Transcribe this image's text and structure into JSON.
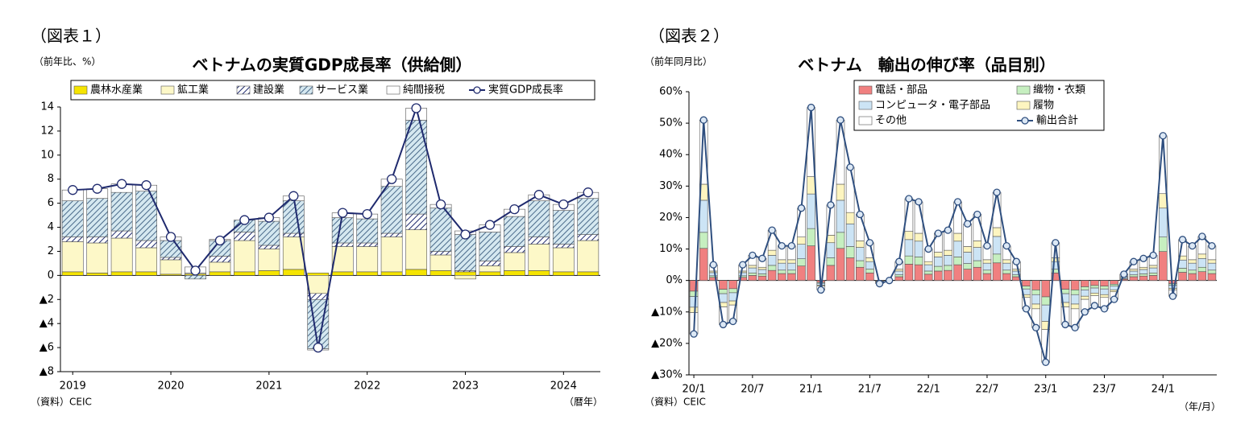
{
  "chart_data": [
    {
      "type": "stacked_bar_line",
      "figure_label": "（図表１）",
      "unit_label": "（前年比、%）",
      "title": "ベトナムの実質GDP成長率（供給側）",
      "source": "（資料）CEIC",
      "x_unit": "（暦年）",
      "categories": [
        "2019",
        null,
        null,
        null,
        "2020",
        null,
        null,
        null,
        "2021",
        null,
        null,
        null,
        "2022",
        null,
        null,
        null,
        "2023",
        null,
        null,
        null,
        "2024",
        null
      ],
      "ylim": [
        -8,
        14
      ],
      "yticks": [
        14,
        12,
        10,
        8,
        6,
        4,
        2,
        0,
        {
          "value": -2,
          "label": "▲2"
        },
        {
          "value": -4,
          "label": "▲4"
        },
        {
          "value": -6,
          "label": "▲6"
        },
        {
          "value": -8,
          "label": "▲8"
        }
      ],
      "series": [
        {
          "name": "農林水産業",
          "color": "#f5e400",
          "values": [
            0.3,
            0.2,
            0.3,
            0.3,
            0.1,
            0.1,
            0.3,
            0.3,
            0.4,
            0.5,
            0.2,
            0.3,
            0.3,
            0.3,
            0.5,
            0.4,
            0.3,
            0.3,
            0.4,
            0.4,
            0.3,
            0.3
          ]
        },
        {
          "name": "鉱工業",
          "color": "#fdf8c8",
          "values": [
            2.5,
            2.5,
            2.8,
            2.0,
            1.2,
            0.1,
            0.8,
            2.6,
            1.8,
            2.7,
            -1.5,
            2.1,
            2.1,
            2.9,
            3.3,
            1.3,
            -0.3,
            0.5,
            1.5,
            2.2,
            2.0,
            2.6
          ]
        },
        {
          "name": "建設業",
          "color": "#ffffff",
          "hatch": "#1f2a6e",
          "values": [
            0.4,
            0.5,
            0.6,
            0.6,
            0.2,
            0.0,
            0.5,
            0.7,
            0.3,
            0.3,
            -0.5,
            0.3,
            0.3,
            0.3,
            1.3,
            0.3,
            0.1,
            0.4,
            0.5,
            0.6,
            0.3,
            0.5
          ]
        },
        {
          "name": "サービス業",
          "color": "#d5e8f0",
          "hatch": "#4a6a8a",
          "values": [
            3.0,
            3.2,
            3.2,
            4.1,
            1.4,
            -0.3,
            1.3,
            1.0,
            2.0,
            2.7,
            -4.1,
            2.1,
            2.0,
            3.9,
            7.8,
            3.6,
            3.0,
            2.4,
            2.5,
            3.0,
            2.8,
            3.0
          ]
        },
        {
          "name": "純間接税",
          "color": "#ffffff",
          "values": [
            0.9,
            0.8,
            0.7,
            0.5,
            0.3,
            0.5,
            0.1,
            0.0,
            0.3,
            0.4,
            -0.1,
            0.4,
            0.4,
            0.6,
            1.0,
            0.3,
            0.3,
            0.6,
            0.6,
            0.5,
            0.5,
            0.5
          ]
        }
      ],
      "line": {
        "name": "実質GDP成長率",
        "color": "#1f2a6e",
        "marker": "#ffffff",
        "values": [
          7.1,
          7.2,
          7.6,
          7.5,
          3.2,
          0.4,
          2.9,
          4.6,
          4.8,
          6.6,
          -6.0,
          5.2,
          5.1,
          8.0,
          13.9,
          5.9,
          3.4,
          4.2,
          5.5,
          6.7,
          5.9,
          6.9
        ]
      }
    },
    {
      "type": "stacked_bar_line",
      "figure_label": "（図表２）",
      "unit_label": "（前年同月比）",
      "title": "ベトナム　輸出の伸び率（品目別）",
      "source": "（資料）CEIC",
      "x_unit": "（年/月）",
      "categories": [
        "20/1",
        null,
        null,
        null,
        null,
        null,
        "20/7",
        null,
        null,
        null,
        null,
        null,
        "21/1",
        null,
        null,
        null,
        null,
        null,
        "21/7",
        null,
        null,
        null,
        null,
        null,
        "22/1",
        null,
        null,
        null,
        null,
        null,
        "22/7",
        null,
        null,
        null,
        null,
        null,
        "23/1",
        null,
        null,
        null,
        null,
        null,
        "23/7",
        null,
        null,
        null,
        null,
        null,
        "24/1",
        null,
        null,
        null,
        null,
        null
      ],
      "ylim": [
        -30,
        60
      ],
      "yticks": [
        {
          "value": 60,
          "label": "60%"
        },
        {
          "value": 50,
          "label": "50%"
        },
        {
          "value": 40,
          "label": "40%"
        },
        {
          "value": 30,
          "label": "30%"
        },
        {
          "value": 20,
          "label": "20%"
        },
        {
          "value": 10,
          "label": "10%"
        },
        {
          "value": 0,
          "label": "0%"
        },
        {
          "value": -10,
          "label": "▲10%"
        },
        {
          "value": -20,
          "label": "▲20%"
        },
        {
          "value": -30,
          "label": "▲30%"
        }
      ],
      "series": [
        {
          "name": "電話・部品",
          "color": "#f08080",
          "values": [
            -3.4,
            10.2,
            1,
            -2.8,
            -2.6,
            1,
            1.6,
            1.4,
            3.2,
            2.2,
            2.2,
            4.6,
            11,
            -0.6,
            4.8,
            10.2,
            7.2,
            4.2,
            2.4,
            -0.2,
            0,
            1.2,
            5.2,
            5,
            2,
            3,
            3.2,
            5,
            3.6,
            4.2,
            2.2,
            5.6,
            2.2,
            1.2,
            -1.8,
            -3,
            -5.2,
            2.4,
            -2.8,
            -3,
            -2,
            -1.6,
            -1.8,
            -1.2,
            0.4,
            1.2,
            1.4,
            1.6,
            9.2,
            -1,
            2.6,
            2.2,
            2.8,
            2.2
          ]
        },
        {
          "name": "織物・衣類",
          "color": "#c6efc0",
          "values": [
            -1.7,
            5.1,
            0.5,
            -1.4,
            -1.3,
            0.5,
            0.8,
            0.7,
            1.6,
            1.1,
            1.1,
            2.3,
            5.5,
            -0.3,
            2.4,
            5.1,
            3.6,
            2.1,
            1.2,
            -0.1,
            0,
            0.6,
            2.6,
            2.5,
            1,
            1.5,
            1.6,
            2.5,
            1.8,
            2.1,
            1.1,
            2.8,
            1.1,
            0.6,
            -0.9,
            -1.5,
            -2.6,
            1.2,
            -1.4,
            -1.5,
            -1,
            -0.8,
            -0.9,
            -0.6,
            0.2,
            0.6,
            0.7,
            0.8,
            4.6,
            -0.5,
            1.3,
            1.1,
            1.4,
            1.1
          ]
        },
        {
          "name": "コンピュータ・電子部品",
          "color": "#cce4f5",
          "values": [
            -3.4,
            10.2,
            1,
            -2.8,
            -2.6,
            1,
            1.6,
            1.4,
            3.2,
            2.2,
            2.2,
            4.6,
            11,
            -0.6,
            4.8,
            10.2,
            7.2,
            4.2,
            2.4,
            -0.2,
            0,
            1.2,
            5.2,
            5,
            2,
            3,
            3.2,
            5,
            3.6,
            4.2,
            2.2,
            5.6,
            2.2,
            1.2,
            -1.8,
            -3,
            -5.2,
            2.4,
            -2.8,
            -3,
            -2,
            -1.6,
            -1.8,
            -1.2,
            0.4,
            1.2,
            1.4,
            1.6,
            9.2,
            -1,
            2.6,
            2.2,
            2.8,
            2.2
          ]
        },
        {
          "name": "履物",
          "color": "#fdf5c0",
          "values": [
            -1.7,
            5.1,
            0.5,
            -1.4,
            -1.3,
            0.5,
            0.8,
            0.7,
            1.6,
            1.1,
            1.1,
            2.3,
            5.5,
            -0.3,
            2.4,
            5.1,
            3.6,
            2.1,
            1.2,
            -0.1,
            0,
            0.6,
            2.6,
            2.5,
            1,
            1.5,
            1.6,
            2.5,
            1.8,
            2.1,
            1.1,
            2.8,
            1.1,
            0.6,
            -0.9,
            -1.5,
            -2.6,
            1.2,
            -1.4,
            -1.5,
            -1,
            -0.8,
            -0.9,
            -0.6,
            0.2,
            0.6,
            0.7,
            0.8,
            4.6,
            -0.5,
            1.3,
            1.1,
            1.4,
            1.1
          ]
        },
        {
          "name": "その他",
          "color": "#ffffff",
          "values": [
            -6.8,
            20.4,
            2,
            -5.6,
            -5.2,
            2,
            3.2,
            2.8,
            6.4,
            4.4,
            4.4,
            9.2,
            22,
            -1.2,
            9.6,
            20.4,
            14.4,
            8.4,
            4.8,
            -0.4,
            0,
            2.4,
            10.4,
            10,
            4,
            6,
            6.4,
            10,
            7.2,
            8.4,
            4.4,
            11.2,
            4.4,
            2.4,
            -3.6,
            -6,
            -10.4,
            4.8,
            -5.6,
            -6,
            -4,
            -3.2,
            -3.6,
            -2.4,
            0.8,
            2.4,
            2.8,
            3.2,
            18.4,
            -2,
            5.2,
            4.4,
            5.6,
            4.4
          ]
        }
      ],
      "line": {
        "name": "輸出合計",
        "color": "#2f4f7f",
        "marker": "#dce8f5",
        "values": [
          -17,
          51,
          5,
          -14,
          -13,
          5,
          8,
          7,
          16,
          11,
          11,
          23,
          55,
          -3,
          24,
          51,
          36,
          21,
          12,
          -1,
          0,
          6,
          26,
          25,
          10,
          15,
          16,
          25,
          18,
          21,
          11,
          28,
          11,
          6,
          -9,
          -15,
          -26,
          12,
          -14,
          -15,
          -10,
          -8,
          -9,
          -6,
          2,
          6,
          7,
          8,
          46,
          -5,
          13,
          11,
          14,
          11
        ]
      }
    }
  ]
}
